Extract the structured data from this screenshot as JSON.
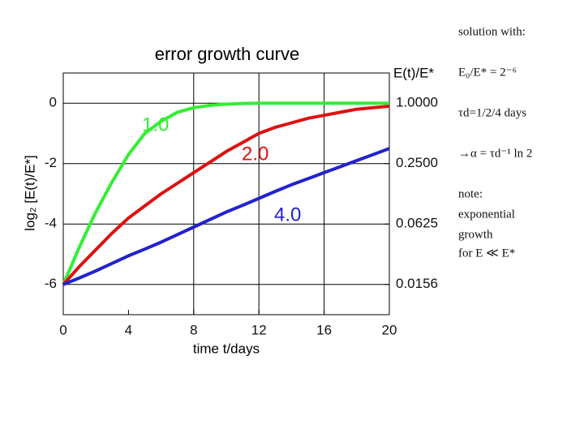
{
  "chart_data": {
    "type": "line",
    "title": "error growth curve",
    "x_label": "time t/days",
    "y_label": "log₂ [E(t)/E*]",
    "y2_label": "E(t)/E*",
    "x": [
      0,
      1,
      2,
      3,
      4,
      5,
      6,
      7,
      8,
      9,
      10,
      11,
      12,
      13,
      14,
      15,
      16,
      17,
      18,
      19,
      20
    ],
    "series": [
      {
        "name": "1.0",
        "color": "#33ee33",
        "values": [
          -6,
          -4.75,
          -3.6,
          -2.6,
          -1.7,
          -1.0,
          -0.6,
          -0.3,
          -0.15,
          -0.07,
          -0.03,
          -0.01,
          0,
          0,
          0,
          0,
          0,
          0,
          0,
          0,
          0
        ]
      },
      {
        "name": "2.0",
        "color": "#dd1111",
        "values": [
          -6,
          -5.4,
          -4.85,
          -4.3,
          -3.8,
          -3.4,
          -3.0,
          -2.65,
          -2.3,
          -1.95,
          -1.6,
          -1.3,
          -1.0,
          -0.8,
          -0.65,
          -0.5,
          -0.4,
          -0.3,
          -0.2,
          -0.15,
          -0.1
        ]
      },
      {
        "name": "4.0",
        "color": "#2222cc",
        "values": [
          -6,
          -5.78,
          -5.55,
          -5.3,
          -5.05,
          -4.83,
          -4.6,
          -4.35,
          -4.1,
          -3.85,
          -3.6,
          -3.38,
          -3.15,
          -2.92,
          -2.7,
          -2.5,
          -2.3,
          -2.1,
          -1.9,
          -1.7,
          -1.5
        ]
      }
    ],
    "xlim": [
      0,
      20
    ],
    "xticks": [
      0,
      4,
      8,
      12,
      16,
      20
    ],
    "xgrid": [
      8,
      12,
      16
    ],
    "ylim": [
      -7,
      1
    ],
    "yticks": [
      0,
      -2,
      -4,
      -6
    ],
    "grid": true,
    "y2scale": "log2",
    "y2lim": [
      0.0078125,
      2
    ],
    "y2ticks": [
      {
        "value": 1,
        "label": "1.0000"
      },
      {
        "value": 0.25,
        "label": "0.2500"
      },
      {
        "value": 0.0625,
        "label": "0.0625"
      },
      {
        "value": 0.015625,
        "label": "0.0156"
      }
    ]
  },
  "notes": [
    "solution with:",
    "E₀/E* = 2⁻⁶",
    "τd=1/2/4 days",
    "→α = τd⁻¹ ln 2",
    "note:",
    "exponential",
    "growth",
    "for E ≪ E*"
  ]
}
